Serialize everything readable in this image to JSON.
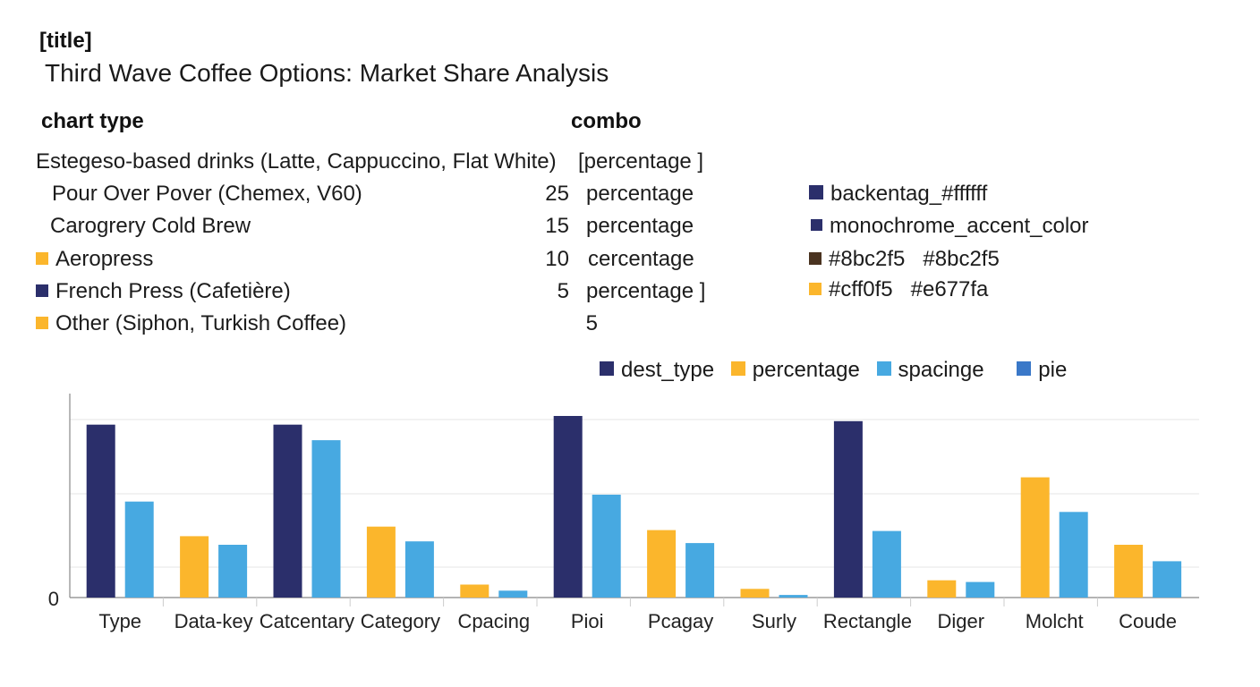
{
  "header": {
    "tag": "[title]",
    "title": "Third Wave Coffee Options: Market Share Analysis",
    "chart_type_label": "chart type",
    "chart_type_value": "combo"
  },
  "colors": {
    "navy": "#2b2f6b",
    "yellow": "#fbb62c",
    "blue": "#47a9e1",
    "blue_dark": "#3a78c8",
    "brown": "#4a3320",
    "axis": "#888888",
    "grid": "#e6e6e6"
  },
  "data_rows": [
    {
      "label": "Estegeso-based drinks (Latte, Cappuccino, Flat White)",
      "value": "",
      "unit": "[percentage ]",
      "marker": null
    },
    {
      "label": "Pour Over Pover (Chemex, V60)",
      "value": "25",
      "unit": "percentage",
      "marker": null
    },
    {
      "label": "Carogrery  Cold Brew",
      "value": "15",
      "unit": "percentage",
      "marker": null
    },
    {
      "label": "Aeropress",
      "value": "10",
      "unit": "cercentage",
      "marker": "#fbb62c"
    },
    {
      "label": "French Press (Cafetière)",
      "value": "5",
      "unit": "percentage ]",
      "marker": "#2b2f6b"
    },
    {
      "label": "Other (Siphon, Turkish Coffee)",
      "value": "5",
      "unit": "",
      "marker": "#fbb62c"
    }
  ],
  "style_items": [
    {
      "text": "backentag_#ffffff",
      "color": "#2b2f6b"
    },
    {
      "text": "monochrome_accent_color",
      "color": "#2b2f6b"
    },
    {
      "text": "#8bc2f5   #8bc2f5",
      "color": "#4a3320"
    },
    {
      "text": "#cff0f5   #e677fa",
      "color": "#fbb62c"
    }
  ],
  "chart_data": {
    "type": "bar",
    "categories": [
      "Type",
      "Data-key",
      "Catcentary",
      "Category",
      "Cpacing",
      "Pioi",
      "Pcagay",
      "Surly",
      "Rectangle",
      "Diger",
      "Molcht",
      "Coude"
    ],
    "series": [
      {
        "name": "dest_type",
        "color": "#2b2f6b",
        "values": [
          100,
          null,
          100,
          null,
          null,
          105,
          null,
          null,
          102,
          null,
          null,
          null
        ]
      },
      {
        "name": "percentage",
        "color": "#fbb62c",
        "values": [
          null,
          35.5,
          null,
          41,
          7.5,
          null,
          39,
          5,
          null,
          10,
          69.5,
          30.5
        ]
      },
      {
        "name": "spacinge",
        "color": "#47a9e1",
        "values": [
          55.5,
          30.5,
          91,
          32.5,
          4,
          59.5,
          31.5,
          1.5,
          38.5,
          9,
          49.5,
          21
        ]
      }
    ],
    "legend": [
      {
        "name": "dest_type",
        "color": "#2b2f6b"
      },
      {
        "name": "percentage",
        "color": "#fbb62c"
      },
      {
        "name": "spacinge",
        "color": "#47a9e1"
      },
      {
        "name": "pie",
        "color": "#3a78c8"
      }
    ],
    "legend_position": "top",
    "y_tick_label": "0",
    "ylim": [
      0,
      120
    ],
    "grid": true
  }
}
